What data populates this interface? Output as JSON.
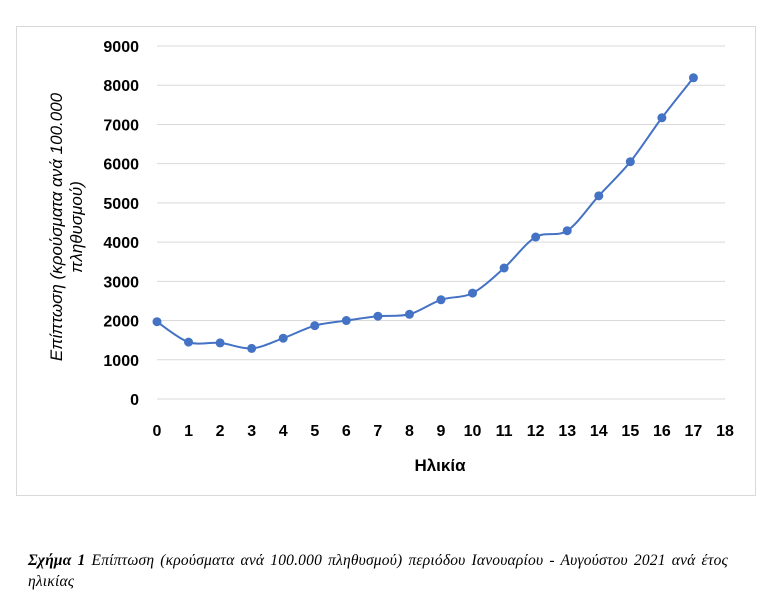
{
  "chart_data": {
    "type": "line",
    "title": "",
    "xlabel": "Ηλικία",
    "ylabel_lines": [
      "Επίπτωση (κρούσματα ανά 100.000",
      "πληθυσμού)"
    ],
    "x": [
      0,
      1,
      2,
      3,
      4,
      5,
      6,
      7,
      8,
      9,
      10,
      11,
      12,
      13,
      14,
      15,
      16,
      17
    ],
    "series": [
      {
        "values": [
          1970,
          1450,
          1430,
          1290,
          1550,
          1870,
          2000,
          2110,
          2160,
          2530,
          2700,
          3340,
          4130,
          4290,
          5180,
          6050,
          7170,
          8190
        ],
        "color": "#4472c4"
      }
    ],
    "xticks": [
      "0",
      "1",
      "2",
      "3",
      "4",
      "5",
      "6",
      "7",
      "8",
      "9",
      "10",
      "11",
      "12",
      "13",
      "14",
      "15",
      "16",
      "17",
      "18"
    ],
    "yticks": [
      "0",
      "1000",
      "2000",
      "3000",
      "4000",
      "5000",
      "6000",
      "7000",
      "8000",
      "9000"
    ],
    "xlim": [
      0,
      18
    ],
    "ylim": [
      0,
      9000
    ],
    "grid": "horizontal",
    "gridline_color": "#d9d9d9"
  },
  "caption": {
    "label": "Σχήμα 1",
    "text": " Επίπτωση (κρούσματα ανά 100.000 πληθυσμού) περιόδου Ιανουαρίου - Αυγούστου 2021 ανά έτος ηλικίας"
  }
}
